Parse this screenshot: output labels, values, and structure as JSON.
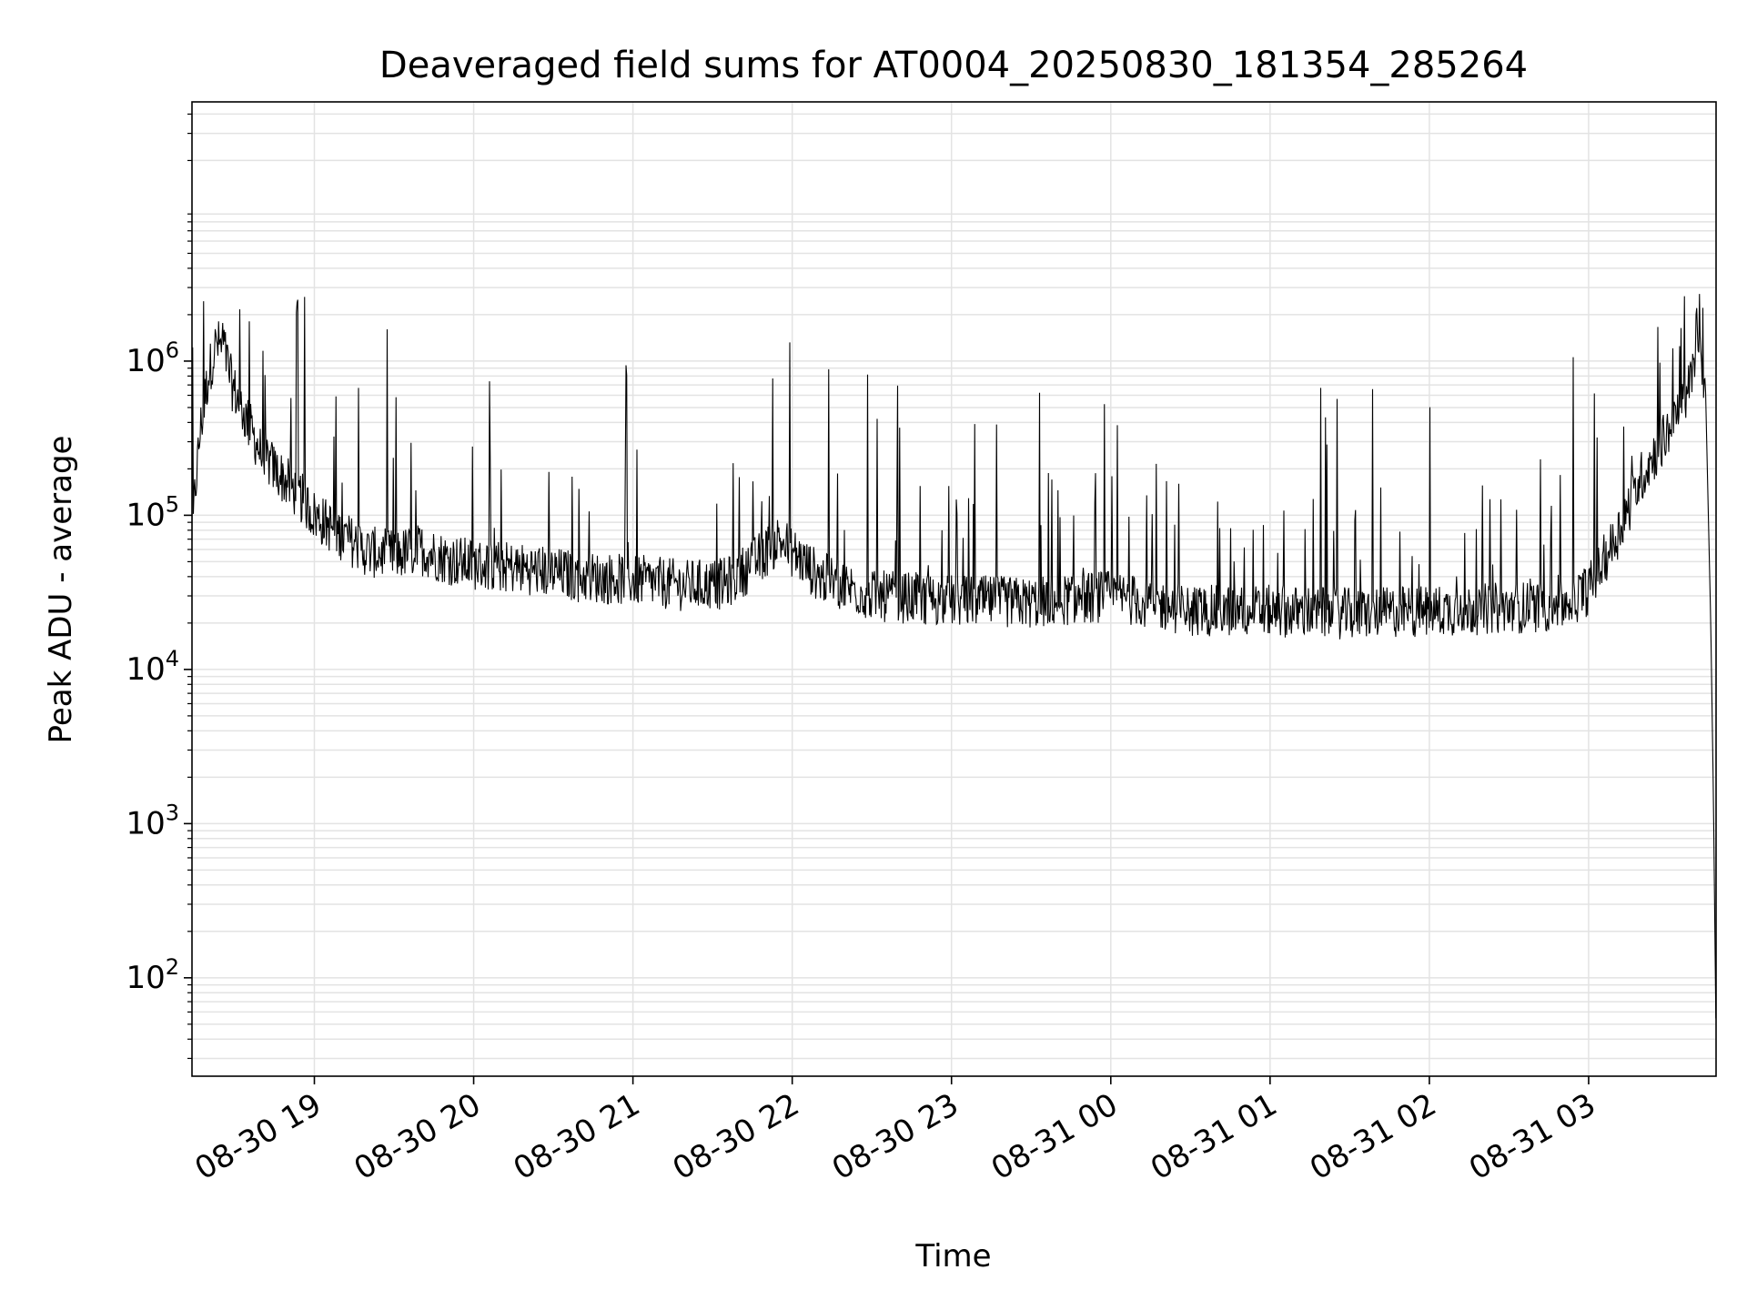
{
  "chart_data": {
    "type": "line",
    "title": "Deaveraged field sums for AT0004_20250830_181354_285264",
    "xlabel": "Time",
    "ylabel": "Peak ADU - average",
    "y_scale": "log",
    "ylim": [
      23,
      48000000
    ],
    "xlim": [
      "2025-08-30 18:13:54",
      "2025-08-31 03:48:00"
    ],
    "grid": true,
    "legend": "none",
    "x_ticks": [
      {
        "value": "2025-08-30 19:00",
        "label": "08-30 19"
      },
      {
        "value": "2025-08-30 20:00",
        "label": "08-30 20"
      },
      {
        "value": "2025-08-30 21:00",
        "label": "08-30 21"
      },
      {
        "value": "2025-08-30 22:00",
        "label": "08-30 22"
      },
      {
        "value": "2025-08-30 23:00",
        "label": "08-30 23"
      },
      {
        "value": "2025-08-31 00:00",
        "label": "08-31 00"
      },
      {
        "value": "2025-08-31 01:00",
        "label": "08-31 01"
      },
      {
        "value": "2025-08-31 02:00",
        "label": "08-31 02"
      },
      {
        "value": "2025-08-31 03:00",
        "label": "08-31 03"
      }
    ],
    "y_ticks": [
      {
        "value": 100,
        "base": "10",
        "exp": "2"
      },
      {
        "value": 1000,
        "base": "10",
        "exp": "3"
      },
      {
        "value": 10000,
        "base": "10",
        "exp": "4"
      },
      {
        "value": 100000,
        "base": "10",
        "exp": "5"
      },
      {
        "value": 1000000,
        "base": "10",
        "exp": "6"
      }
    ],
    "series": [
      {
        "color": "#000000",
        "x": [
          "2025-08-30 18:13:54",
          "2025-08-30 18:15",
          "2025-08-30 18:17",
          "2025-08-30 18:20",
          "2025-08-30 18:23",
          "2025-08-30 18:26",
          "2025-08-30 18:29",
          "2025-08-30 18:32",
          "2025-08-30 18:35",
          "2025-08-30 18:40",
          "2025-08-30 18:45",
          "2025-08-30 18:50",
          "2025-08-30 18:55",
          "2025-08-30 19:00",
          "2025-08-30 19:10",
          "2025-08-30 19:20",
          "2025-08-30 19:30",
          "2025-08-30 19:40",
          "2025-08-30 19:50",
          "2025-08-30 20:00",
          "2025-08-30 20:20",
          "2025-08-30 20:40",
          "2025-08-30 21:00",
          "2025-08-30 21:20",
          "2025-08-30 21:35",
          "2025-08-30 21:45",
          "2025-08-30 21:55",
          "2025-08-30 22:10",
          "2025-08-30 22:30",
          "2025-08-30 23:00",
          "2025-08-30 23:30",
          "2025-08-31 00:00",
          "2025-08-31 00:30",
          "2025-08-31 01:00",
          "2025-08-31 01:30",
          "2025-08-31 02:00",
          "2025-08-31 02:30",
          "2025-08-31 02:50",
          "2025-08-31 03:00",
          "2025-08-31 03:10",
          "2025-08-31 03:20",
          "2025-08-31 03:30",
          "2025-08-31 03:35",
          "2025-08-31 03:38",
          "2025-08-31 03:41",
          "2025-08-31 03:44",
          "2025-08-31 03:46",
          "2025-08-31 03:47",
          "2025-08-31 03:48"
        ],
        "y": [
          60000,
          140000,
          350000,
          800000,
          1300000,
          1200000,
          700000,
          520000,
          400000,
          250000,
          200000,
          160000,
          130000,
          100000,
          75000,
          58000,
          55000,
          60000,
          52000,
          48000,
          45000,
          40000,
          38000,
          35000,
          36000,
          48000,
          70000,
          40000,
          30000,
          28000,
          27000,
          30000,
          24000,
          24000,
          23000,
          24000,
          25000,
          26000,
          33000,
          70000,
          180000,
          350000,
          500000,
          700000,
          1200000,
          700000,
          20000,
          1500,
          40
        ]
      }
    ]
  }
}
